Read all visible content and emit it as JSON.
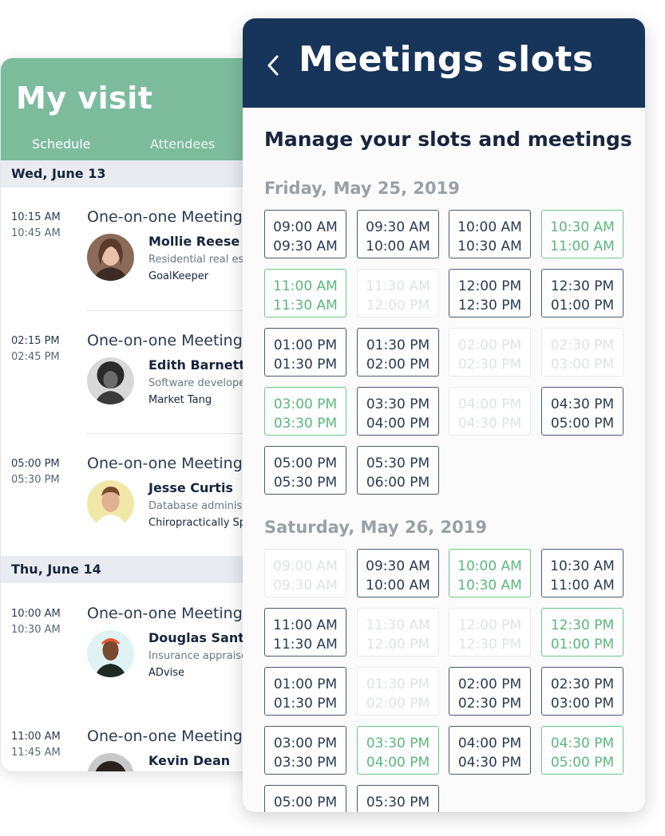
{
  "visit": {
    "title": "My visit",
    "tabs": [
      "Schedule",
      "Attendees"
    ],
    "days": [
      {
        "label": "Wed, June 13",
        "meetings": [
          {
            "start": "10:15 AM",
            "end": "10:45 AM",
            "title": "One-on-one Meeting",
            "name": "Mollie Reese",
            "role": "Residential real es",
            "company": "GoalKeeper"
          },
          {
            "start": "02:15 PM",
            "end": "02:45 PM",
            "title": "One-on-one Meeting",
            "name": "Edith Barnett",
            "role": "Software develope",
            "company": "Market Tang"
          },
          {
            "start": "05:00 PM",
            "end": "05:30 PM",
            "title": "One-on-one Meeting",
            "name": "Jesse Curtis",
            "role": "Database administ",
            "company": "Chiropractically Sp"
          }
        ]
      },
      {
        "label": "Thu, June 14",
        "meetings": [
          {
            "start": "10:00 AM",
            "end": "10:30 AM",
            "title": "One-on-one Meeting",
            "name": "Douglas Santos",
            "role": "Insurance appraise",
            "company": "ADvise"
          },
          {
            "start": "11:00 AM",
            "end": "11:45 AM",
            "title": "One-on-one Meeting",
            "name": "Kevin Dean",
            "role": "",
            "company": ""
          }
        ]
      }
    ]
  },
  "slots": {
    "title": "Meetings slots",
    "subtitle": "Manage your slots and meetings",
    "days": [
      {
        "date": "Friday, May 25, 2019",
        "slots": [
          {
            "from": "09:00 AM",
            "to": "09:30 AM",
            "state": "booked"
          },
          {
            "from": "09:30 AM",
            "to": "10:00 AM",
            "state": "booked"
          },
          {
            "from": "10:00 AM",
            "to": "10:30 AM",
            "state": "booked"
          },
          {
            "from": "10:30 AM",
            "to": "11:00 AM",
            "state": "available"
          },
          {
            "from": "11:00 AM",
            "to": "11:30 AM",
            "state": "available"
          },
          {
            "from": "11:30 AM",
            "to": "12:00 PM",
            "state": "disabled"
          },
          {
            "from": "12:00 PM",
            "to": "12:30 PM",
            "state": "booked"
          },
          {
            "from": "12:30 PM",
            "to": "01:00 PM",
            "state": "booked"
          },
          {
            "from": "01:00 PM",
            "to": "01:30 PM",
            "state": "booked"
          },
          {
            "from": "01:30 PM",
            "to": "02:00 PM",
            "state": "booked"
          },
          {
            "from": "02:00 PM",
            "to": "02:30 PM",
            "state": "disabled"
          },
          {
            "from": "02:30 PM",
            "to": "03:00 PM",
            "state": "disabled"
          },
          {
            "from": "03:00 PM",
            "to": "03:30 PM",
            "state": "available"
          },
          {
            "from": "03:30 PM",
            "to": "04:00 PM",
            "state": "booked"
          },
          {
            "from": "04:00 PM",
            "to": "04:30 PM",
            "state": "disabled"
          },
          {
            "from": "04:30 PM",
            "to": "05:00 PM",
            "state": "booked"
          },
          {
            "from": "05:00 PM",
            "to": "05:30 PM",
            "state": "booked"
          },
          {
            "from": "05:30 PM",
            "to": "06:00 PM",
            "state": "booked"
          }
        ]
      },
      {
        "date": "Saturday, May 26, 2019",
        "slots": [
          {
            "from": "09:00 AM",
            "to": "09:30 AM",
            "state": "disabled"
          },
          {
            "from": "09:30 AM",
            "to": "10:00 AM",
            "state": "booked"
          },
          {
            "from": "10:00 AM",
            "to": "10:30 AM",
            "state": "available"
          },
          {
            "from": "10:30 AM",
            "to": "11:00 AM",
            "state": "booked"
          },
          {
            "from": "11:00 AM",
            "to": "11:30 AM",
            "state": "booked"
          },
          {
            "from": "11:30 AM",
            "to": "12:00 PM",
            "state": "disabled"
          },
          {
            "from": "12:00 PM",
            "to": "12:30 PM",
            "state": "disabled"
          },
          {
            "from": "12:30 PM",
            "to": "01:00 PM",
            "state": "available"
          },
          {
            "from": "01:00 PM",
            "to": "01:30 PM",
            "state": "booked"
          },
          {
            "from": "01:30 PM",
            "to": "02:00 PM",
            "state": "disabled"
          },
          {
            "from": "02:00 PM",
            "to": "02:30 PM",
            "state": "booked"
          },
          {
            "from": "02:30 PM",
            "to": "03:00 PM",
            "state": "booked"
          },
          {
            "from": "03:00 PM",
            "to": "03:30 PM",
            "state": "booked"
          },
          {
            "from": "03:30 PM",
            "to": "04:00 PM",
            "state": "available"
          },
          {
            "from": "04:00 PM",
            "to": "04:30 PM",
            "state": "booked"
          },
          {
            "from": "04:30 PM",
            "to": "05:00 PM",
            "state": "available"
          },
          {
            "from": "05:00 PM",
            "to": "",
            "state": "booked"
          },
          {
            "from": "05:30 PM",
            "to": "",
            "state": "booked"
          }
        ]
      }
    ]
  },
  "colors": {
    "visit_header": "#7cbc9d",
    "slots_header": "#17345a",
    "available": "#6cc68c",
    "booked": "#4a5a72",
    "disabled": "#e8eaec"
  },
  "icons": {
    "back": "chevron-left-icon",
    "avatars": [
      "avatar-photo-icon"
    ]
  }
}
